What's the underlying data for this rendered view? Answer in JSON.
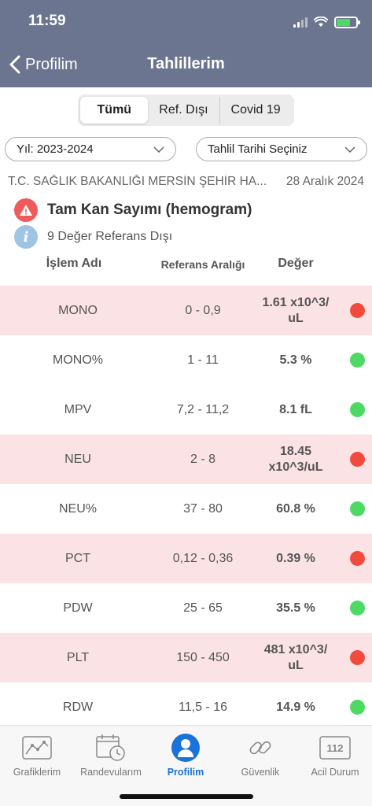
{
  "status_bar": {
    "time": "11:59"
  },
  "nav": {
    "back_label": "Profilim",
    "title": "Tahlillerim"
  },
  "segments": [
    {
      "label": "Tümü",
      "active": true
    },
    {
      "label": "Ref. Dışı",
      "active": false
    },
    {
      "label": "Covid 19",
      "active": false
    }
  ],
  "filters": {
    "year": "Yıl: 2023-2024",
    "date": "Tahlil Tarihi Seçiniz"
  },
  "report": {
    "hospital": "T.C. SAĞLIK BAKANLIĞI MERSİN ŞEHİR HA...",
    "date": "28 Aralık 2024",
    "test_name": "Tam Kan Sayımı (hemogram)",
    "out_of_range_note": "9 Değer Referans Dışı"
  },
  "table": {
    "headers": {
      "name": "İşlem Adı",
      "range": "Referans Aralığı",
      "value": "Değer"
    },
    "rows": [
      {
        "name": "MONO",
        "range": "0 - 0,9",
        "value": "1.61 x10^3/\nuL",
        "out": true
      },
      {
        "name": "MONO%",
        "range": "1 - 11",
        "value": "5.3 %",
        "out": false
      },
      {
        "name": "MPV",
        "range": "7,2 - 11,2",
        "value": "8.1 fL",
        "out": false
      },
      {
        "name": "NEU",
        "range": "2 - 8",
        "value": "18.45\nx10^3/uL",
        "out": true
      },
      {
        "name": "NEU%",
        "range": "37 - 80",
        "value": "60.8 %",
        "out": false
      },
      {
        "name": "PCT",
        "range": "0,12 - 0,36",
        "value": "0.39 %",
        "out": true
      },
      {
        "name": "PDW",
        "range": "25 - 65",
        "value": "35.5 %",
        "out": false
      },
      {
        "name": "PLT",
        "range": "150 - 450",
        "value": "481 x10^3/\nuL",
        "out": true
      },
      {
        "name": "RDW",
        "range": "11,5 - 16",
        "value": "14.9 %",
        "out": false
      }
    ]
  },
  "colors": {
    "header_bg": "#6c7590",
    "out_row_bg": "#fbe3e5",
    "dot_out": "#f24a3d",
    "dot_ok": "#4cd964",
    "active_tab": "#1a73d9"
  },
  "tabbar": [
    {
      "label": "Grafiklerim",
      "icon": "chart-icon",
      "active": false
    },
    {
      "label": "Randevularım",
      "icon": "calendar-icon",
      "active": false
    },
    {
      "label": "Profilim",
      "icon": "profile-icon",
      "active": true
    },
    {
      "label": "Güvenlik",
      "icon": "link-icon",
      "active": false
    },
    {
      "label": "Acil Durum",
      "icon": "emergency-112-icon",
      "active": false
    }
  ],
  "emergency_number": "112"
}
